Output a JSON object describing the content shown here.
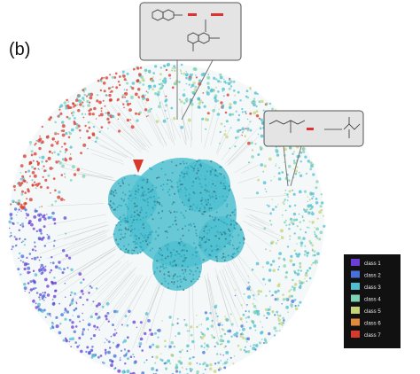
{
  "panel_label": "(b)",
  "legend": {
    "items": [
      {
        "label": "class 1",
        "color": "#6a3fd6"
      },
      {
        "label": "class 2",
        "color": "#4a6fd8"
      },
      {
        "label": "class 3",
        "color": "#4fbfd0"
      },
      {
        "label": "class 4",
        "color": "#7fd3b5"
      },
      {
        "label": "class 5",
        "color": "#c5d47a"
      },
      {
        "label": "class 6",
        "color": "#e08a3c"
      },
      {
        "label": "class 7",
        "color": "#d8392a"
      }
    ]
  }
}
